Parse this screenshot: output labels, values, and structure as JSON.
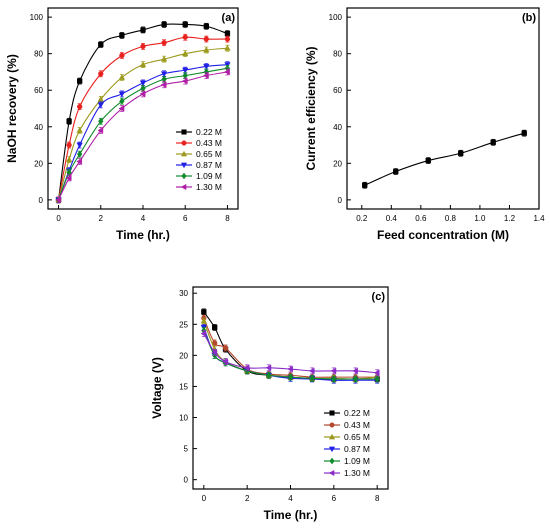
{
  "chart_data": [
    {
      "type": "line",
      "panel_label": "(a)",
      "xlabel": "Time (hr.)",
      "ylabel": "NaOH recovery (%)",
      "xlim": [
        -0.5,
        8.5
      ],
      "ylim": [
        -5,
        105
      ],
      "xticks": [
        "0",
        "2",
        "4",
        "6",
        "8"
      ],
      "yticks": [
        "0",
        "20",
        "40",
        "60",
        "80",
        "100"
      ],
      "legend_position": "lower-right",
      "x": [
        0,
        0.5,
        1,
        2,
        3,
        4,
        5,
        6,
        7,
        8
      ],
      "series": [
        {
          "name": "0.22 M",
          "color": "#000000",
          "marker": "square",
          "values": [
            0,
            43,
            65,
            85,
            90,
            93,
            96,
            96,
            95,
            91
          ]
        },
        {
          "name": "0.43 M",
          "color": "#e8211f",
          "marker": "circle",
          "values": [
            0,
            30,
            51,
            69,
            79,
            84,
            86,
            89,
            88,
            88
          ]
        },
        {
          "name": "0.65 M",
          "color": "#9c9a1c",
          "marker": "triangle-up",
          "values": [
            0,
            22,
            38,
            55,
            67,
            74,
            77,
            80,
            82,
            83
          ]
        },
        {
          "name": "0.87 M",
          "color": "#1f1fe6",
          "marker": "triangle-down",
          "values": [
            0,
            16,
            30,
            52,
            58,
            64,
            69,
            71,
            73,
            74
          ]
        },
        {
          "name": "1.09 M",
          "color": "#0f8a2b",
          "marker": "diamond",
          "values": [
            0,
            15,
            25,
            43,
            54,
            61,
            66,
            68,
            70,
            72
          ]
        },
        {
          "name": "1.30 M",
          "color": "#b01ea8",
          "marker": "triangle-left",
          "values": [
            0,
            12,
            21,
            38,
            50,
            58,
            63,
            65,
            68,
            70
          ]
        }
      ]
    },
    {
      "type": "line",
      "panel_label": "(b)",
      "xlabel": "Feed concentration (M)",
      "ylabel": "Current efficiency (%)",
      "xlim": [
        0.1,
        1.4
      ],
      "ylim": [
        -5,
        105
      ],
      "xticks": [
        "0.2",
        "0.4",
        "0.6",
        "0.8",
        "1.0",
        "1.2",
        "1.4"
      ],
      "yticks": [
        "0",
        "20",
        "40",
        "60",
        "80",
        "100"
      ],
      "series": [
        {
          "name": "",
          "color": "#000000",
          "marker": "square",
          "x": [
            0.22,
            0.43,
            0.65,
            0.87,
            1.09,
            1.3
          ],
          "values": [
            8,
            15.5,
            21.5,
            25.5,
            31.5,
            36.5
          ]
        }
      ]
    },
    {
      "type": "line",
      "panel_label": "(c)",
      "xlabel": "Time (hr.)",
      "ylabel": "Voltage (V)",
      "xlim": [
        -0.5,
        8.5
      ],
      "ylim": [
        -1.5,
        31
      ],
      "xticks": [
        "0",
        "2",
        "4",
        "6",
        "8"
      ],
      "yticks": [
        "0",
        "5",
        "10",
        "15",
        "20",
        "25",
        "30"
      ],
      "legend_position": "lower-right",
      "x": [
        0,
        0.5,
        1,
        2,
        3,
        4,
        5,
        6,
        7,
        8
      ],
      "series": [
        {
          "name": "0.22 M",
          "color": "#000000",
          "marker": "square",
          "values": [
            27,
            24.5,
            21,
            17.5,
            16.8,
            16.5,
            16.3,
            16.2,
            16.2,
            16.2
          ]
        },
        {
          "name": "0.43 M",
          "color": "#b5482c",
          "marker": "circle",
          "values": [
            26,
            22,
            21.2,
            17.8,
            17.0,
            16.8,
            16.5,
            16.5,
            16.5,
            16.5
          ]
        },
        {
          "name": "0.65 M",
          "color": "#9c9a1c",
          "marker": "triangle-up",
          "values": [
            25.5,
            21,
            19,
            17.5,
            16.8,
            16.5,
            16.3,
            16.3,
            16.2,
            16.5
          ]
        },
        {
          "name": "0.87 M",
          "color": "#1f1fe6",
          "marker": "triangle-down",
          "values": [
            24.5,
            20,
            18.8,
            17.5,
            16.8,
            16.3,
            16.2,
            16.0,
            16.0,
            16.0
          ]
        },
        {
          "name": "1.09 M",
          "color": "#0f8a2b",
          "marker": "diamond",
          "values": [
            24,
            20,
            18.8,
            17.5,
            16.8,
            16.5,
            16.3,
            16.2,
            16.2,
            16.2
          ]
        },
        {
          "name": "1.30 M",
          "color": "#8b2cc9",
          "marker": "triangle-left",
          "values": [
            23.5,
            20.5,
            19,
            18,
            18,
            17.8,
            17.5,
            17.5,
            17.5,
            17.2
          ]
        }
      ]
    }
  ]
}
